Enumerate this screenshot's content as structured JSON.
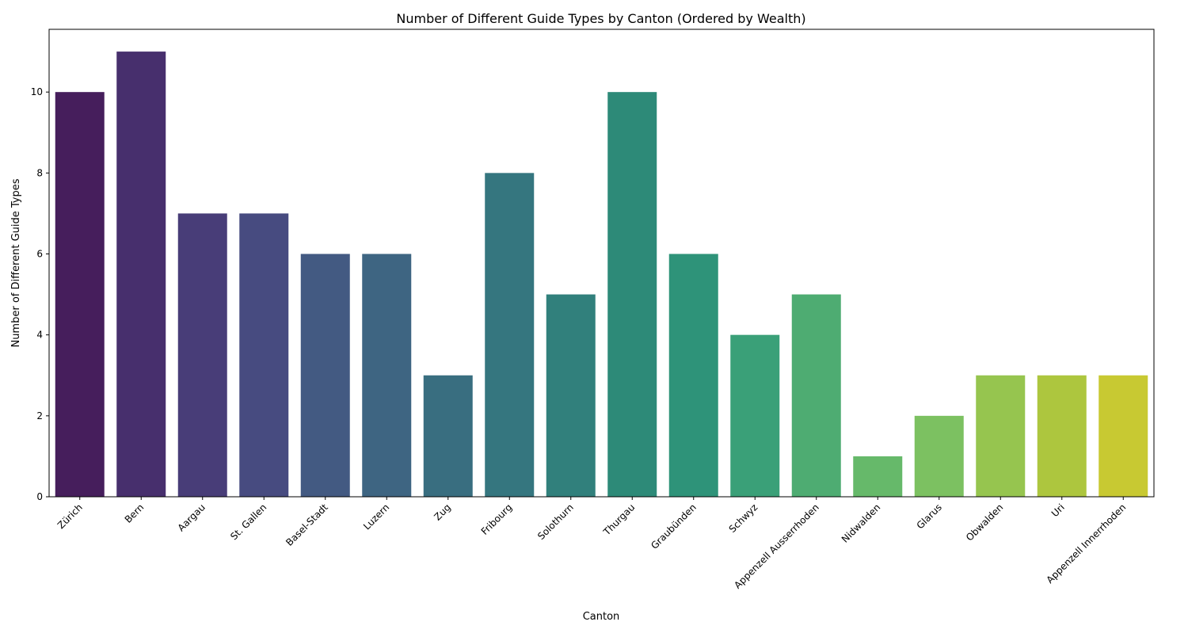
{
  "chart_data": {
    "type": "bar",
    "title": "Number of Different Guide Types by Canton (Ordered by Wealth)",
    "xlabel": "Canton",
    "ylabel": "Number of Different Guide Types",
    "categories": [
      "Zürich",
      "Bern",
      "Aargau",
      "St. Gallen",
      "Basel-Stadt",
      "Luzern",
      "Zug",
      "Fribourg",
      "Solothurn",
      "Thurgau",
      "Graubünden",
      "Schwyz",
      "Appenzell Ausserrhoden",
      "Nidwalden",
      "Glarus",
      "Obwalden",
      "Uri",
      "Appenzell Innerrhoden"
    ],
    "values": [
      10,
      11,
      7,
      7,
      6,
      6,
      3,
      8,
      5,
      10,
      6,
      4,
      5,
      1,
      2,
      3,
      3,
      3
    ],
    "colors": [
      "#461e5c",
      "#472f6d",
      "#483d78",
      "#474b80",
      "#435a82",
      "#3e6582",
      "#396e80",
      "#35767f",
      "#31807c",
      "#2d8a78",
      "#2e9379",
      "#3aa078",
      "#4eac72",
      "#66b96a",
      "#7cc161",
      "#96c54f",
      "#adc63e",
      "#c8c932"
    ],
    "yticks": [
      "0",
      "2",
      "4",
      "6",
      "8",
      "10"
    ],
    "ylim": [
      0,
      11.55
    ],
    "grid": false,
    "legend": "none"
  }
}
